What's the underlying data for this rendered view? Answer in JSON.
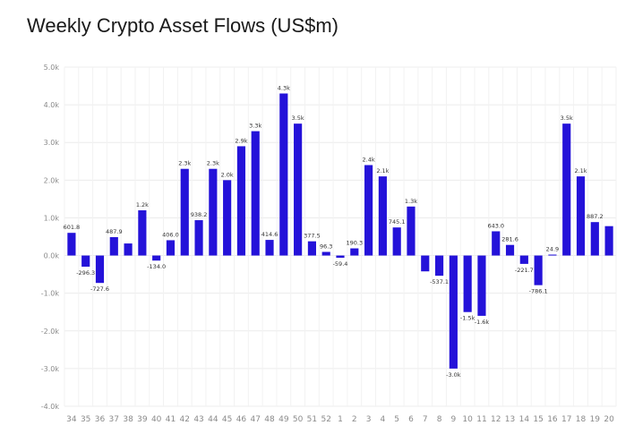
{
  "chart_data": {
    "type": "bar",
    "title": "Weekly Crypto Asset Flows (US$m)",
    "xlabel": "",
    "ylabel": "",
    "ylim": [
      -4000,
      5000
    ],
    "y_ticks": [
      {
        "value": 5000,
        "label": "5.0k"
      },
      {
        "value": 4000,
        "label": "4.0k"
      },
      {
        "value": 3000,
        "label": "3.0k"
      },
      {
        "value": 2000,
        "label": "2.0k"
      },
      {
        "value": 1000,
        "label": "1.0k"
      },
      {
        "value": 0,
        "label": "0.0k"
      },
      {
        "value": -1000,
        "label": "-1.0k"
      },
      {
        "value": -2000,
        "label": "-2.0k"
      },
      {
        "value": -3000,
        "label": "-3.0k"
      },
      {
        "value": -4000,
        "label": "-4.0k"
      }
    ],
    "grid": true,
    "bar_color": "#2412d9",
    "categories": [
      "34",
      "35",
      "36",
      "37",
      "38",
      "39",
      "40",
      "41",
      "42",
      "43",
      "44",
      "45",
      "46",
      "47",
      "48",
      "49",
      "50",
      "51",
      "52",
      "1",
      "2",
      "3",
      "4",
      "5",
      "6",
      "7",
      "8",
      "9",
      "10",
      "11",
      "12",
      "13",
      "14",
      "15",
      "16",
      "17",
      "18",
      "19",
      "20"
    ],
    "values": [
      601.8,
      -296.3,
      -727.6,
      487.9,
      320,
      1200,
      -134.0,
      406.0,
      2300,
      938.2,
      2300,
      2000,
      2900,
      3300,
      414.6,
      4300,
      3500,
      377.5,
      96.3,
      -59.4,
      190.3,
      2400,
      2100,
      745.1,
      1300,
      -420,
      -537.1,
      -3000,
      -1500,
      -1600,
      643.0,
      281.6,
      -221.7,
      -786.1,
      24.9,
      3500,
      2100,
      887.2,
      780
    ],
    "data_labels": [
      "601.8",
      "-296.3",
      "-727.6",
      "487.9",
      "",
      "1.2k",
      "-134.0",
      "406.0",
      "2.3k",
      "938.2",
      "2.3k",
      "2.0k",
      "2.9k",
      "3.3k",
      "414.6",
      "4.3k",
      "3.5k",
      "377.5",
      "96.3",
      "-59.4",
      "190.3",
      "2.4k",
      "2.1k",
      "745.1",
      "1.3k",
      "",
      "-537.1",
      "-3.0k",
      "-1.5k",
      "-1.6k",
      "643.0",
      "281.6",
      "-221.7",
      "-786.1",
      "24.9",
      "3.5k",
      "2.1k",
      "887.2",
      ""
    ]
  }
}
